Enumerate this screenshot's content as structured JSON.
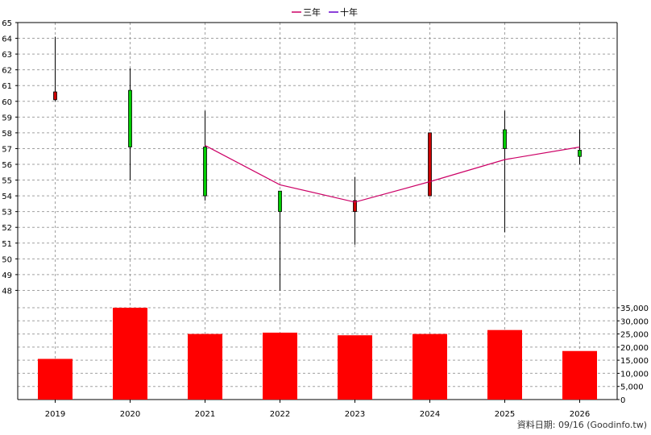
{
  "chart_data": {
    "type": "candlestick_with_bar",
    "legend": {
      "entries": [
        {
          "label": "三年",
          "color": "#cc0066"
        },
        {
          "label": "十年",
          "color": "#6600cc"
        }
      ],
      "placement": "top-center"
    },
    "categories": [
      "2019",
      "2020",
      "2021",
      "2022",
      "2023",
      "2024",
      "2025",
      "2026"
    ],
    "price_axis": {
      "ylim": [
        47,
        65
      ],
      "ticks": [
        "48",
        "49",
        "50",
        "51",
        "52",
        "53",
        "54",
        "55",
        "56",
        "57",
        "58",
        "59",
        "60",
        "61",
        "62",
        "63",
        "64",
        "65"
      ],
      "side": "left",
      "grid": true
    },
    "candles": [
      {
        "year": "2019",
        "open": 60.1,
        "close": 60.6,
        "high": 64.1,
        "low": 60.0
      },
      {
        "year": "2020",
        "open": 60.7,
        "close": 57.1,
        "high": 62.1,
        "low": 55.0
      },
      {
        "year": "2021",
        "open": 57.1,
        "close": 54.0,
        "high": 59.4,
        "low": 53.7
      },
      {
        "year": "2022",
        "open": 54.3,
        "close": 53.0,
        "high": 54.3,
        "low": 48.0
      },
      {
        "year": "2023",
        "open": 53.0,
        "close": 53.7,
        "high": 55.2,
        "low": 50.9
      },
      {
        "year": "2024",
        "open": 54.0,
        "close": 58.0,
        "high": 58.0,
        "low": 54.0
      },
      {
        "year": "2025",
        "open": 58.2,
        "close": 57.0,
        "high": 59.4,
        "low": 51.7
      },
      {
        "year": "2026",
        "open": 56.9,
        "close": 56.5,
        "high": 58.2,
        "low": 56.0
      }
    ],
    "candle_colors": {
      "up": "#cc0000",
      "down": "#00cc00"
    },
    "series": [
      {
        "name": "三年",
        "color": "#cc0066",
        "x": [
          "2021",
          "2022",
          "2023",
          "2024",
          "2025",
          "2026"
        ],
        "values": [
          57.2,
          54.7,
          53.6,
          54.9,
          56.3,
          57.1
        ]
      }
    ],
    "volume_axis": {
      "ylim": [
        0,
        35000
      ],
      "ticks": [
        "0",
        "5,000",
        "10,000",
        "15,000",
        "20,000",
        "25,000",
        "30,000",
        "35,000"
      ],
      "side": "right",
      "grid": true
    },
    "volume": {
      "color": "#ff0000",
      "values": [
        15500,
        35000,
        25000,
        25500,
        24500,
        25000,
        26500,
        18500
      ]
    },
    "footer": "資料日期: 09/16  (Goodinfo.tw)"
  }
}
